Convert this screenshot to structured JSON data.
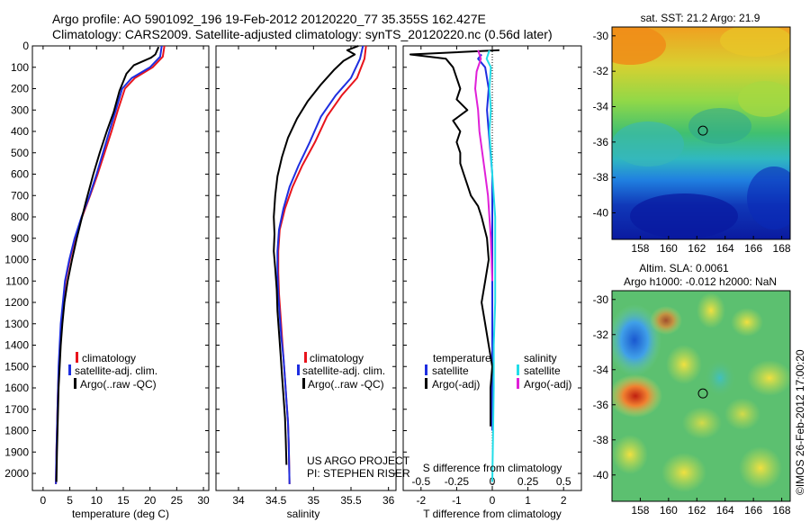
{
  "header": {
    "line1": "Argo profile: AO 5901092_196 19-Feb-2012 20120220_77 35.355S 162.427E",
    "line2": "Climatology: CARS2009. Satellite-adjusted climatology: synTS_20120220.nc (0.56d later)"
  },
  "footer": {
    "project": "US ARGO PROJECT",
    "pi": "PI: STEPHEN RISER",
    "credit": "©IMOS 26-Feb-2012 17:00:20"
  },
  "colors": {
    "climatology": "#e8141c",
    "satellite": "#1e2ee0",
    "argo": "#000000",
    "satellite_s": "#22dde8",
    "argo_s": "#e020d8"
  },
  "chart_data": [
    {
      "id": "temperature",
      "type": "line",
      "xlabel": "temperature (deg C)",
      "xlim": [
        -2,
        31
      ],
      "xticks": [
        0,
        5,
        10,
        15,
        20,
        25,
        30
      ],
      "ylim": [
        2080,
        0
      ],
      "yticks": [
        0,
        100,
        200,
        300,
        400,
        500,
        600,
        700,
        800,
        900,
        1000,
        1100,
        1200,
        1300,
        1400,
        1500,
        1600,
        1700,
        1800,
        1900,
        2000
      ],
      "legend": [
        "climatology",
        "satellite-adj. clim.",
        "Argo(..raw -QC)"
      ],
      "series": [
        {
          "name": "climatology",
          "color_key": "climatology",
          "x": [
            22.7,
            22.4,
            20.5,
            17.2,
            15.3,
            14.0,
            12.8,
            11.5,
            10.2,
            8.8,
            7.3,
            6.0,
            5.0,
            4.2,
            3.8,
            3.4,
            3.2,
            3.0,
            2.8,
            2.7,
            2.6,
            2.5,
            2.4
          ],
          "y": [
            0,
            50,
            100,
            150,
            200,
            300,
            400,
            500,
            600,
            700,
            800,
            900,
            1000,
            1100,
            1200,
            1300,
            1400,
            1500,
            1600,
            1700,
            1800,
            1900,
            2050
          ]
        },
        {
          "name": "satellite-adj. clim.",
          "color_key": "satellite",
          "x": [
            22.2,
            21.9,
            20.0,
            16.6,
            14.8,
            13.6,
            12.4,
            11.2,
            10.0,
            8.7,
            7.2,
            5.9,
            4.9,
            4.1,
            3.7,
            3.3,
            3.1,
            2.9,
            2.8,
            2.7,
            2.6,
            2.5,
            2.4
          ],
          "y": [
            0,
            50,
            100,
            150,
            200,
            300,
            400,
            500,
            600,
            700,
            800,
            900,
            1000,
            1100,
            1200,
            1300,
            1400,
            1500,
            1600,
            1700,
            1800,
            1900,
            2050
          ]
        },
        {
          "name": "Argo(..raw -QC)",
          "color_key": "argo",
          "x": [
            21.6,
            21.0,
            20.2,
            17.0,
            15.6,
            14.3,
            13.2,
            11.9,
            10.6,
            9.4,
            8.1,
            7.2,
            6.3,
            5.4,
            4.6,
            4.0,
            3.6,
            3.3,
            3.1,
            2.9,
            2.8,
            2.7,
            2.6,
            2.5
          ],
          "y": [
            5,
            40,
            55,
            90,
            130,
            210,
            310,
            400,
            500,
            600,
            720,
            810,
            900,
            1000,
            1100,
            1200,
            1300,
            1400,
            1500,
            1600,
            1700,
            1800,
            1900,
            2040
          ]
        }
      ]
    },
    {
      "id": "salinity",
      "type": "line",
      "xlabel": "salinity",
      "xlim": [
        33.7,
        36.1
      ],
      "xticks": [
        34,
        34.5,
        35,
        35.5,
        36
      ],
      "ylim": [
        2080,
        0
      ],
      "legend": [
        "climatology",
        "satellite-adj. clim.",
        "Argo(..raw -QC)"
      ],
      "series": [
        {
          "name": "climatology",
          "color_key": "climatology",
          "x": [
            35.7,
            35.68,
            35.58,
            35.38,
            35.18,
            35.02,
            34.85,
            34.72,
            34.62,
            34.55,
            34.53,
            34.53,
            34.54,
            34.56,
            34.58,
            34.6,
            34.62,
            34.64,
            34.66,
            34.67,
            34.68
          ],
          "y": [
            0,
            60,
            150,
            230,
            330,
            450,
            560,
            660,
            760,
            860,
            960,
            1060,
            1160,
            1260,
            1360,
            1460,
            1560,
            1660,
            1760,
            1860,
            2050
          ]
        },
        {
          "name": "satellite-adj. clim.",
          "color_key": "satellite",
          "x": [
            35.66,
            35.62,
            35.5,
            35.3,
            35.1,
            34.95,
            34.8,
            34.68,
            34.6,
            34.54,
            34.52,
            34.52,
            34.53,
            34.55,
            34.57,
            34.6,
            34.62,
            34.64,
            34.66,
            34.67,
            34.68
          ],
          "y": [
            0,
            60,
            150,
            230,
            330,
            450,
            560,
            660,
            760,
            860,
            960,
            1060,
            1160,
            1260,
            1360,
            1460,
            1560,
            1660,
            1760,
            1860,
            2050
          ]
        },
        {
          "name": "Argo(..raw -QC)",
          "color_key": "argo",
          "x": [
            35.6,
            35.45,
            35.55,
            35.4,
            35.28,
            35.1,
            34.92,
            34.78,
            34.66,
            34.58,
            34.52,
            34.49,
            34.47,
            34.48,
            34.47,
            34.49,
            34.51,
            34.52,
            34.54,
            34.56,
            34.58,
            34.6,
            34.62,
            34.63,
            34.64
          ],
          "y": [
            0,
            20,
            40,
            70,
            110,
            180,
            260,
            340,
            430,
            520,
            610,
            700,
            800,
            880,
            960,
            1040,
            1140,
            1240,
            1340,
            1440,
            1540,
            1640,
            1740,
            1840,
            1960
          ]
        }
      ]
    },
    {
      "id": "difference",
      "type": "line",
      "xlabel": "T difference from climatology",
      "xlabel2": "S difference from climatology",
      "xlim": [
        -2.5,
        2.5
      ],
      "xticks": [
        -2,
        -1,
        0,
        1,
        2
      ],
      "xticks_s": [
        -0.5,
        -0.25,
        0,
        0.25,
        0.5
      ],
      "legend_left_title": "temperature",
      "legend_right_title": "salinity",
      "legend_left": [
        "satellite",
        "Argo(-adj)"
      ],
      "legend_right": [
        "satellite",
        "Argo(-adj)"
      ],
      "series": [
        {
          "name": "T satellite",
          "color_key": "satellite",
          "x": [
            -0.3,
            -0.4,
            -0.2,
            -0.1,
            -0.15,
            -0.1,
            -0.05,
            0.0,
            0.0,
            0.0,
            0.0,
            0.0,
            0.0,
            0.0,
            0.0,
            0.0
          ],
          "y": [
            40,
            60,
            100,
            200,
            300,
            400,
            500,
            600,
            700,
            800,
            900,
            1000,
            1200,
            1400,
            1600,
            1800
          ]
        },
        {
          "name": "T Argo(-adj)",
          "color_key": "argo",
          "x": [
            0.2,
            -2.3,
            -1.3,
            -1.1,
            -0.9,
            -1.0,
            -0.7,
            -1.1,
            -0.9,
            -1.0,
            -0.9,
            -0.9,
            -0.8,
            -0.7,
            -0.6,
            -0.4,
            -0.3,
            -0.15,
            -0.1,
            -0.2,
            -0.3,
            -0.2,
            -0.1,
            0.0,
            -0.05,
            -0.05
          ],
          "y": [
            20,
            40,
            60,
            100,
            200,
            250,
            300,
            350,
            400,
            450,
            500,
            550,
            600,
            650,
            700,
            750,
            800,
            900,
            1000,
            1100,
            1200,
            1300,
            1400,
            1500,
            1600,
            1780
          ]
        },
        {
          "name": "S satellite",
          "color_key": "satellite_s",
          "x": [
            -0.02,
            -0.04,
            -0.01,
            -0.02,
            -0.01,
            -0.02,
            -0.01,
            0.0,
            0.01,
            0.02,
            0.02,
            0.02,
            0.02,
            0.01,
            0.01,
            0.0
          ],
          "y": [
            20,
            60,
            100,
            200,
            300,
            400,
            500,
            600,
            700,
            800,
            900,
            1000,
            1200,
            1400,
            1600,
            2040
          ]
        },
        {
          "name": "S Argo(-adj)",
          "color_key": "argo_s",
          "x": [
            -0.1,
            -0.08,
            -0.11,
            -0.12,
            -0.1,
            -0.09,
            -0.07,
            -0.05,
            -0.03,
            -0.02,
            -0.01,
            -0.005,
            0.0
          ],
          "y": [
            20,
            60,
            120,
            200,
            300,
            400,
            500,
            600,
            700,
            800,
            900,
            1000,
            1100
          ]
        }
      ]
    },
    {
      "id": "sst_map",
      "type": "heatmap",
      "title": "sat. SST: 21.2  Argo: 21.9",
      "xlim": [
        156,
        168.6
      ],
      "ylim": [
        -41.5,
        -29.5
      ],
      "xticks": [
        158,
        160,
        162,
        164,
        166,
        168
      ],
      "yticks": [
        -30,
        -32,
        -34,
        -36,
        -38,
        -40
      ],
      "marker": {
        "lon": 162.427,
        "lat": -35.355
      }
    },
    {
      "id": "sla_map",
      "type": "heatmap",
      "title": "Altim. SLA: 0.0061",
      "subtitle": "Argo h1000: -0.012 h2000: NaN",
      "xlim": [
        156,
        168.6
      ],
      "ylim": [
        -41.5,
        -29.5
      ],
      "xticks": [
        158,
        160,
        162,
        164,
        166,
        168
      ],
      "yticks": [
        -30,
        -32,
        -34,
        -36,
        -38,
        -40
      ],
      "marker": {
        "lon": 162.427,
        "lat": -35.355
      }
    }
  ]
}
